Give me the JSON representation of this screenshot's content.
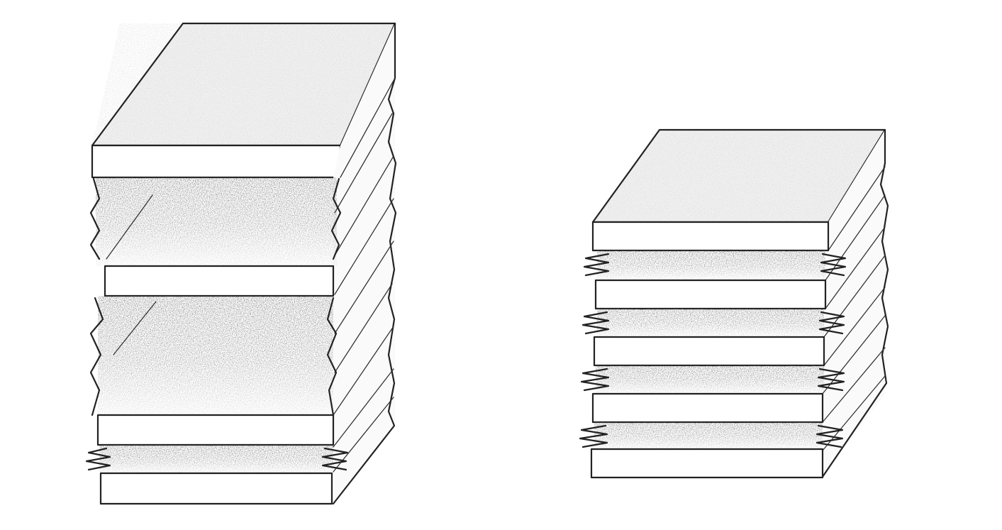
{
  "colors": {
    "background": "#ffffff",
    "line": "#222222",
    "top_face": "#f1f1f1",
    "shadow": "#1a1a1a"
  },
  "drawings": [
    {
      "name": "left-stack",
      "style": "pencil sketch",
      "layers": 4
    },
    {
      "name": "right-stack",
      "style": "pencil sketch",
      "layers": 5
    }
  ]
}
